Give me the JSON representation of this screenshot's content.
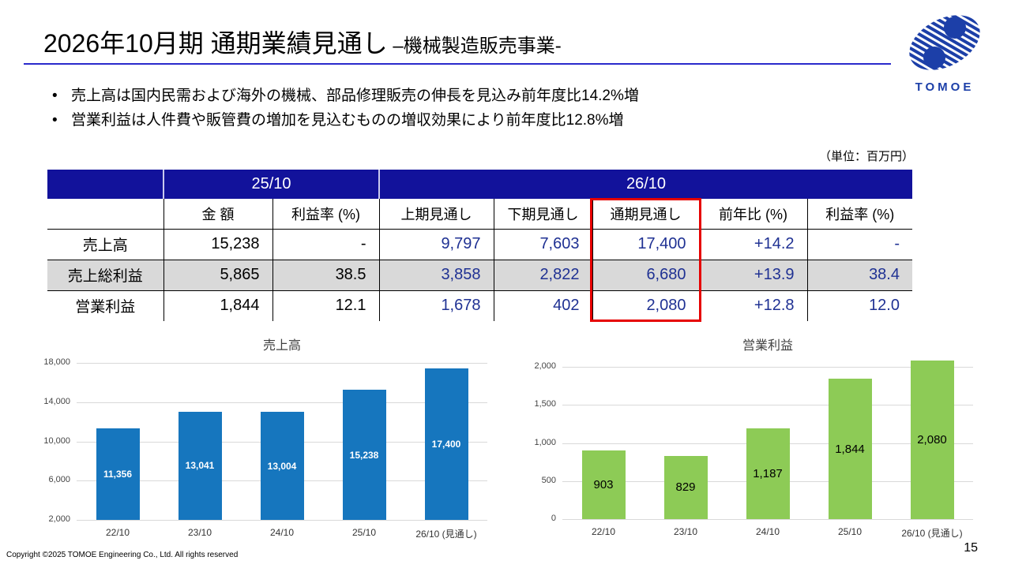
{
  "slide": {
    "title_main": "2026年10月期 通期業績見通し",
    "title_sub": " –機械製造販売事業-",
    "bullets": [
      "売上高は国内民需および海外の機械、部品修理販売の伸長を見込み前年度比14.2%増",
      "営業利益は人件費や販管費の増加を見込むものの増収効果により前年度比12.8%増"
    ],
    "bullet_glyph": "•",
    "unit_note": "（単位：百万円）",
    "footer": "Copyright ©2025 TOMOE Engineering Co., Ltd. All rights reserved",
    "page_number": "15",
    "logo_text": "TOMOE"
  },
  "table": {
    "group_headers": [
      "25/10",
      "26/10"
    ],
    "col_headers": [
      "金 額",
      "利益率 (%)",
      "上期見通し",
      "下期見通し",
      "通期見通し",
      "前年比 (%)",
      "利益率 (%)"
    ],
    "rows": [
      {
        "label": "売上高",
        "cells": [
          "15,238",
          "-",
          "9,797",
          "7,603",
          "17,400",
          "+14.2",
          "-"
        ]
      },
      {
        "label": "売上総利益",
        "cells": [
          "5,865",
          "38.5",
          "3,858",
          "2,822",
          "6,680",
          "+13.9",
          "38.4"
        ]
      },
      {
        "label": "営業利益",
        "cells": [
          "1,844",
          "12.1",
          "1,678",
          "402",
          "2,080",
          "+12.8",
          "12.0"
        ]
      }
    ],
    "highlighted_column": "通期見通し"
  },
  "chart_data": [
    {
      "type": "bar",
      "title": "売上高",
      "categories": [
        "22/10",
        "23/10",
        "24/10",
        "25/10",
        "26/10 (見通し)"
      ],
      "values": [
        11356,
        13041,
        13004,
        15238,
        17400
      ],
      "value_labels": [
        "11,356",
        "13,041",
        "13,004",
        "15,238",
        "17,400"
      ],
      "ylim": [
        2000,
        18000
      ],
      "yticks": [
        {
          "v": 2000,
          "label": "2,000"
        },
        {
          "v": 6000,
          "label": "6,000"
        },
        {
          "v": 10000,
          "label": "10,000"
        },
        {
          "v": 14000,
          "label": "14,000"
        },
        {
          "v": 18000,
          "label": "18,000"
        }
      ],
      "grid": true,
      "bar_color": "#1676BE",
      "value_label_color": "#FFFFFF",
      "value_label_size": 12,
      "value_label_bold": true
    },
    {
      "type": "bar",
      "title": "営業利益",
      "categories": [
        "22/10",
        "23/10",
        "24/10",
        "25/10",
        "26/10 (見通し)"
      ],
      "values": [
        903,
        829,
        1187,
        1844,
        2080
      ],
      "value_labels": [
        "903",
        "829",
        "1,187",
        "1,844",
        "2,080"
      ],
      "ylim": [
        0,
        2000
      ],
      "yticks": [
        {
          "v": 0,
          "label": "0"
        },
        {
          "v": 500,
          "label": "500"
        },
        {
          "v": 1000,
          "label": "1,000"
        },
        {
          "v": 1500,
          "label": "1,500"
        },
        {
          "v": 2000,
          "label": "2,000"
        }
      ],
      "grid": true,
      "bar_color": "#8DCB56",
      "value_label_color": "#000000",
      "value_label_size": 15,
      "value_label_bold": false
    }
  ],
  "colors": {
    "table_header_navy": "#12129B",
    "forecast_text_navy": "#1F3193",
    "highlight_red": "#E60000",
    "gray_row": "#D9D9D9",
    "title_rule_blue": "#2A2ACC",
    "logo_blue": "#1C3FA8"
  }
}
